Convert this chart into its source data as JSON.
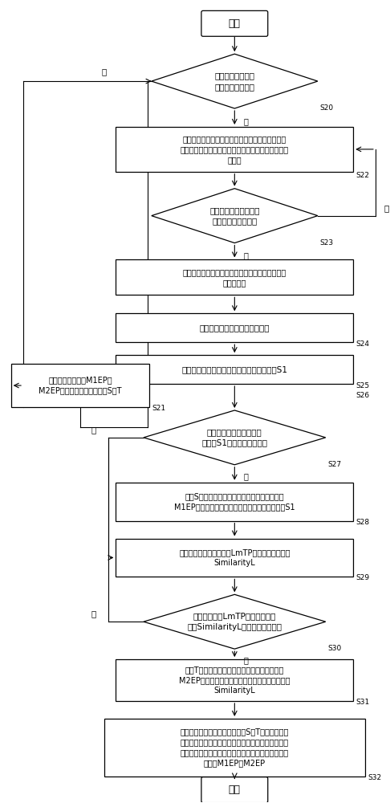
{
  "bg_color": "#ffffff",
  "nodes": {
    "start": {
      "label": "开始",
      "type": "round"
    },
    "S20": {
      "label": "判断当前循环次数\n是否达到第二数值",
      "type": "diamond",
      "step": "S20"
    },
    "S22": {
      "label": "根据所述指静脉图像的端点和所述模板图像的端点\n确定出从所述指静脉图像到所述模板图像的的仿射变\n换参数",
      "type": "rect",
      "step": "S22"
    },
    "S23": {
      "label": "判断所述仿射变换参数\n是否在预设的范围内",
      "type": "diamond",
      "step": "S23"
    },
    "S24a": {
      "label": "通过仿射变换参数，对所述指静脉图像的特征点进\n行仿射变换",
      "type": "rect",
      "step": ""
    },
    "S24": {
      "label": "使用距离信息计算最佳匹配点对",
      "type": "rect",
      "step": "S24"
    },
    "S25": {
      "label": "计算当前匹配点对的基于距离的局部相似度S1",
      "type": "rect",
      "step": "S25"
    },
    "S27": {
      "label": "判断所述基于距离的局部\n相似度S1是否小于第三数值",
      "type": "diamond",
      "step": "S27"
    },
    "S28": {
      "label": "更新S为所述仿射变换参数，更新最佳匹配点对\nM1EP为所述最佳匹配点对，更新所述第三数值为S1",
      "type": "rect",
      "step": "S28"
    },
    "S28b": {
      "label": "计算当前匹配点对的基于LmTP特征的局部相似度\nSimilarityL",
      "type": "rect",
      "step": ""
    },
    "S30": {
      "label": "判断所述基于LmTP特征的局部相\n似度SimilarityL是否大于第四数值",
      "type": "diamond",
      "step": "S30"
    },
    "S31": {
      "label": "更新T为所述仿射变换参数，更新最佳匹配点对\nM2EP为所述最佳匹配点对，更新所述第四数值为\nSimilarityL",
      "type": "rect",
      "step": "S31"
    },
    "S32": {
      "label": "利用计算到的最佳仿射变换参数S、T分别对所述指\n静脉图像的分支点进行仿射变换，并将每一次变换后\n的分支点和所述模板图像的分支点进行匹配，得到匹\n配点对M1EP、M2EP",
      "type": "rect",
      "step": "S32"
    },
    "S21": {
      "label": "保存最佳匹配点对M1EP、\nM2EP以及最佳仿射变换参数S、T",
      "type": "rect",
      "step": "S21"
    },
    "end": {
      "label": "结束",
      "type": "round"
    }
  }
}
